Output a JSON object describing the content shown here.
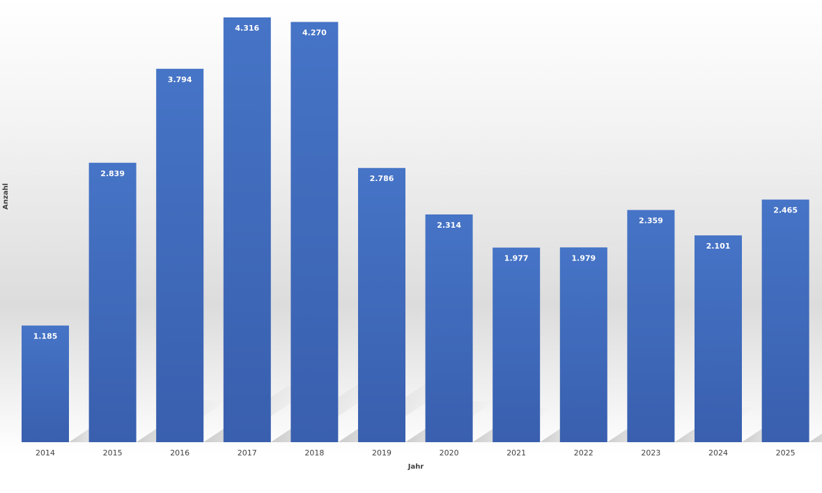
{
  "chart_data": {
    "type": "bar",
    "categories": [
      "2014",
      "2015",
      "2016",
      "2017",
      "2018",
      "2019",
      "2020",
      "2021",
      "2022",
      "2023",
      "2024",
      "2025"
    ],
    "values": [
      1185,
      2839,
      3794,
      4316,
      4270,
      2786,
      2314,
      1977,
      1979,
      2359,
      2101,
      2465
    ],
    "data_labels": [
      "1.185",
      "2.839",
      "3.794",
      "4.316",
      "4.270",
      "2.786",
      "2.314",
      "1.977",
      "1.979",
      "2.359",
      "2.101",
      "2.465"
    ],
    "xlabel": "Jahr",
    "ylabel": "Anzahl",
    "ylim": [
      0,
      4316
    ],
    "grid": false,
    "bar_color": "#4472c4"
  }
}
